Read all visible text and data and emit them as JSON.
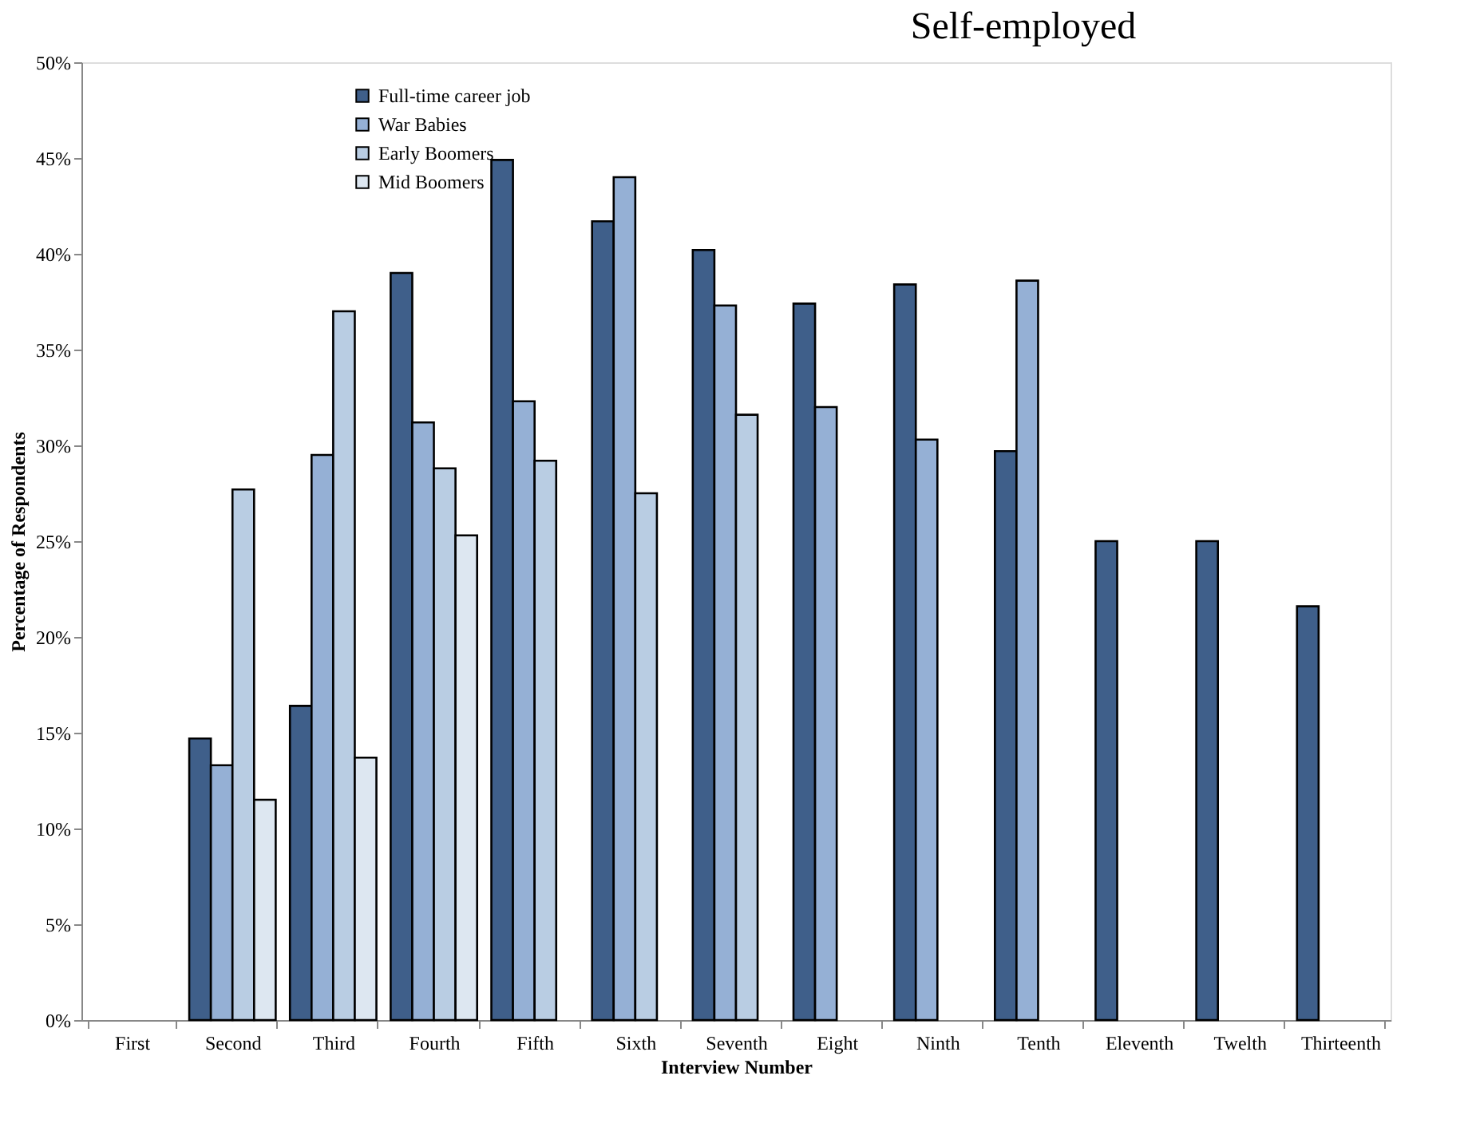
{
  "chart_data": {
    "type": "bar",
    "title": "Self-employed",
    "xlabel": "Interview Number",
    "ylabel": "Percentage  of Respondents",
    "categories": [
      "First",
      "Second",
      "Third",
      "Fourth",
      "Fifth",
      "Sixth",
      "Seventh",
      "Eight",
      "Ninth",
      "Tenth",
      "Eleventh",
      "Twelth",
      "Thirteenth"
    ],
    "series": [
      {
        "name": "Full-time career job",
        "color": "#3f5f8a",
        "values": [
          null,
          14.7,
          16.4,
          39.0,
          44.9,
          41.7,
          40.2,
          37.4,
          38.4,
          29.7,
          25.0,
          25.0,
          21.6
        ]
      },
      {
        "name": "War Babies",
        "color": "#95b0d5",
        "values": [
          null,
          13.3,
          29.5,
          31.2,
          32.3,
          44.0,
          37.3,
          32.0,
          30.3,
          38.6,
          null,
          null,
          null
        ]
      },
      {
        "name": "Early Boomers",
        "color": "#b9cde3",
        "values": [
          null,
          27.7,
          37.0,
          28.8,
          29.2,
          27.5,
          31.6,
          null,
          null,
          null,
          null,
          null,
          null
        ]
      },
      {
        "name": "Mid Boomers",
        "color": "#dde7f1",
        "values": [
          null,
          11.5,
          13.7,
          25.3,
          null,
          null,
          null,
          null,
          null,
          null,
          null,
          null,
          null
        ]
      }
    ],
    "ylim": [
      0,
      50
    ],
    "yticks": [
      {
        "value": 0,
        "label": "0%"
      },
      {
        "value": 5,
        "label": "5%"
      },
      {
        "value": 10,
        "label": "10%"
      },
      {
        "value": 15,
        "label": "15%"
      },
      {
        "value": 20,
        "label": "20%"
      },
      {
        "value": 25,
        "label": "25%"
      },
      {
        "value": 30,
        "label": "30%"
      },
      {
        "value": 35,
        "label": "35%"
      },
      {
        "value": 40,
        "label": "40%"
      },
      {
        "value": 45,
        "label": "45%"
      },
      {
        "value": 50,
        "label": "50%"
      }
    ],
    "grid": false,
    "legend": "top left"
  }
}
